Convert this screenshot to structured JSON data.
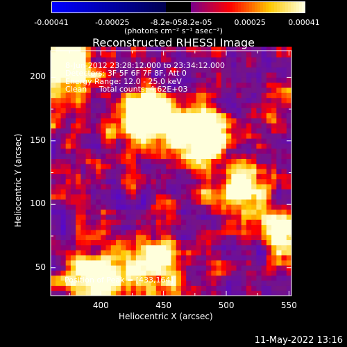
{
  "colorbar": {
    "tick_labels": [
      "-0.00041",
      "-0.00025",
      "-8.2e-05",
      "8.2e-05",
      "0.00025",
      "0.00041"
    ],
    "unit_label": "(photons cm⁻² s⁻¹ asec⁻²)",
    "colors": [
      "#0000ff",
      "#000000",
      "#ff0000",
      "#ffff00",
      "#ffffff"
    ]
  },
  "info_lines": [
    "8-Jun-2012 23:28:12.000 to 23:34:12.000",
    "Detectors: 3F 5F 6F 7F 8F, Att 0",
    "Energy Range: 12.0 - 25.0 keV",
    "Clean     Total counts: 4.62E+03"
  ],
  "peak_label": "Position of Peak = [433,164]",
  "timestamp": "11-May-2022 13:16",
  "chart_data": {
    "type": "heatmap",
    "title": "Reconstructed RHESSI Image",
    "xlabel": "Heliocentric X (arcsec)",
    "ylabel": "Heliocentric Y (arcsec)",
    "xlim": [
      360,
      552
    ],
    "ylim": [
      28,
      221
    ],
    "x_ticks": [
      400,
      450,
      500,
      550
    ],
    "y_ticks": [
      50,
      100,
      150,
      200
    ],
    "color_range": [
      -0.00041,
      0.00041
    ],
    "peak_position": [
      433,
      164
    ],
    "bright_sources": [
      {
        "x": 433,
        "y": 166,
        "level": 1.0
      },
      {
        "x": 476,
        "y": 153,
        "level": 0.95
      },
      {
        "x": 372,
        "y": 206,
        "level": 0.85
      },
      {
        "x": 395,
        "y": 42,
        "level": 0.8
      },
      {
        "x": 545,
        "y": 80,
        "level": 0.7
      },
      {
        "x": 510,
        "y": 110,
        "level": 0.6
      },
      {
        "x": 440,
        "y": 50,
        "level": 0.55
      }
    ],
    "colormap": "rainbow-negative blue, positive red-yellow-white"
  }
}
